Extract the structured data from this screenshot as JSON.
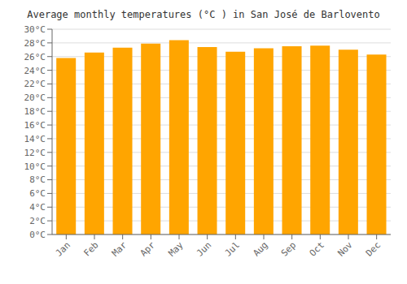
{
  "chart_data": {
    "type": "bar",
    "title": "Average monthly temperatures (°C ) in San José de Barlovento",
    "categories": [
      "Jan",
      "Feb",
      "Mar",
      "Apr",
      "May",
      "Jun",
      "Jul",
      "Aug",
      "Sep",
      "Oct",
      "Nov",
      "Dec"
    ],
    "values": [
      25.8,
      26.6,
      27.3,
      27.9,
      28.4,
      27.4,
      26.7,
      27.2,
      27.5,
      27.6,
      27.0,
      26.3
    ],
    "color": "#FFA500",
    "ylim": [
      0,
      30
    ],
    "yticks": [
      {
        "value": 0,
        "label": "0°C"
      },
      {
        "value": 2,
        "label": "2°C"
      },
      {
        "value": 4,
        "label": "4°C"
      },
      {
        "value": 6,
        "label": "6°C"
      },
      {
        "value": 8,
        "label": "8°C"
      },
      {
        "value": 10,
        "label": "10°C"
      },
      {
        "value": 12,
        "label": "12°C"
      },
      {
        "value": 14,
        "label": "14°C"
      },
      {
        "value": 16,
        "label": "16°C"
      },
      {
        "value": 18,
        "label": "18°C"
      },
      {
        "value": 20,
        "label": "20°C"
      },
      {
        "value": 22,
        "label": "22°C"
      },
      {
        "value": 24,
        "label": "24°C"
      },
      {
        "value": 26,
        "label": "26°C"
      },
      {
        "value": 28,
        "label": "28°C"
      },
      {
        "value": 30,
        "label": "30°C"
      }
    ],
    "grid": true
  }
}
